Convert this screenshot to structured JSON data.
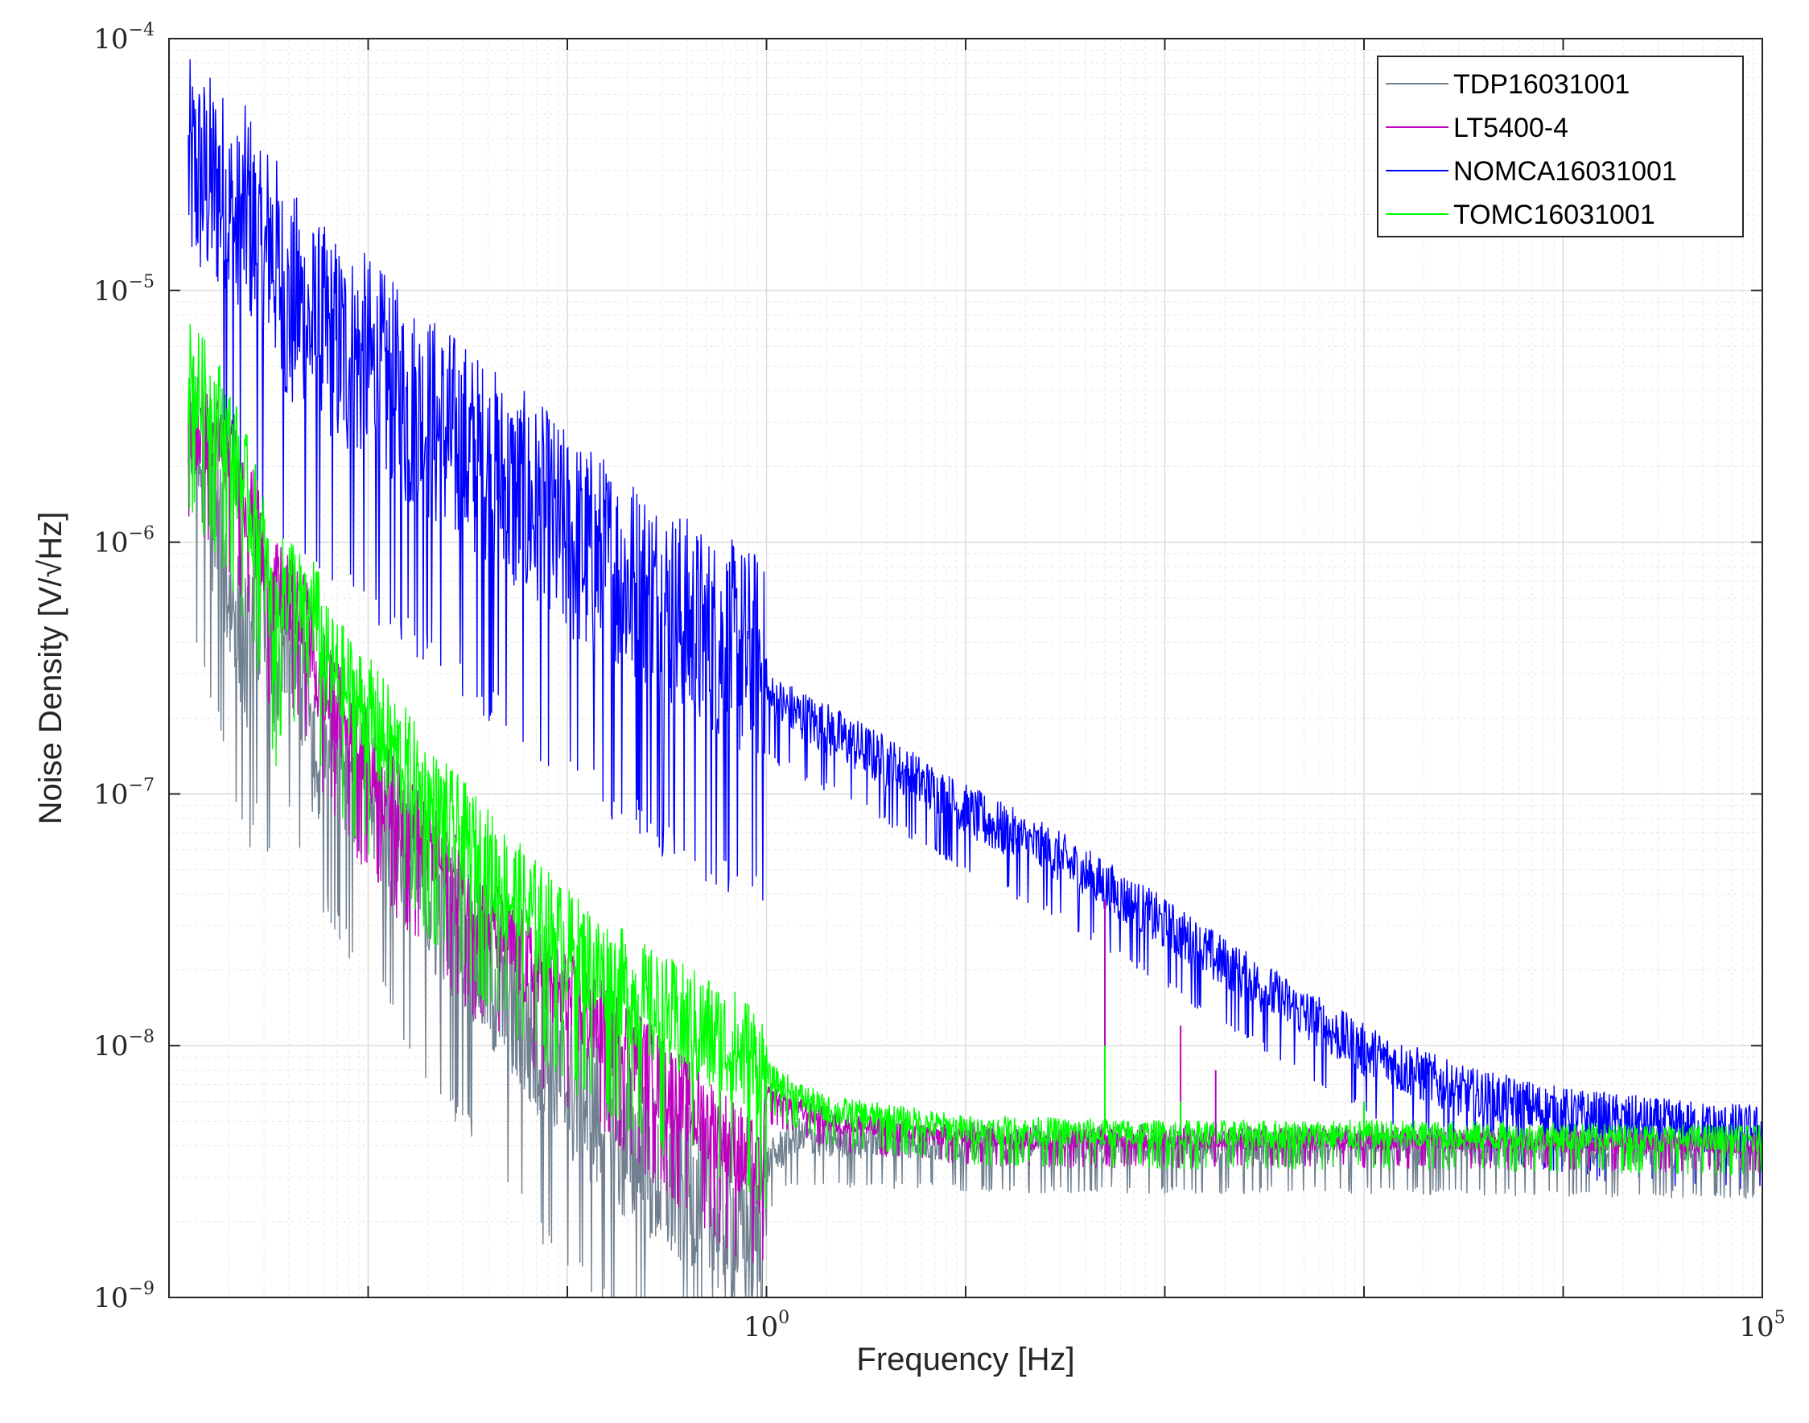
{
  "chart_data": {
    "type": "line",
    "xlabel": "Frequency [Hz]",
    "ylabel": "Noise Density [V/√Hz]",
    "xscale": "log",
    "yscale": "log",
    "xlim": [
      0.001,
      100000
    ],
    "ylim": [
      1e-09,
      0.0001
    ],
    "grid": true,
    "minor_grid": true,
    "legend_position": "top-right",
    "x_ticks": [
      {
        "value": 1,
        "base": "10",
        "exp": "0"
      },
      {
        "value": 100000,
        "base": "10",
        "exp": "5"
      }
    ],
    "y_ticks": [
      {
        "value": 1e-09,
        "base": "10",
        "exp": "−9"
      },
      {
        "value": 1e-08,
        "base": "10",
        "exp": "−8"
      },
      {
        "value": 1e-07,
        "base": "10",
        "exp": "−7"
      },
      {
        "value": 1e-06,
        "base": "10",
        "exp": "−6"
      },
      {
        "value": 1e-05,
        "base": "10",
        "exp": "−5"
      },
      {
        "value": 0.0001,
        "base": "10",
        "exp": "−4"
      }
    ],
    "series": [
      {
        "name": "TDP16031001",
        "color": "#708090",
        "x": [
          0.00125,
          0.0016,
          0.0018,
          0.0025,
          0.0029,
          0.0031,
          0.0035,
          0.004,
          0.0048,
          0.0055,
          0.006,
          0.007,
          0.008,
          0.01,
          0.015,
          0.02,
          0.04,
          0.06,
          0.1,
          0.2,
          0.3,
          0.5,
          0.8,
          0.95,
          1.0,
          1.3,
          1.6,
          2,
          5,
          10,
          30,
          100,
          1000,
          10000,
          100000
        ],
        "y": [
          3e-06,
          1.4e-06,
          9e-07,
          3.3e-07,
          5.7e-07,
          3.4e-07,
          3.3e-07,
          4e-07,
          2.7e-07,
          1.1e-07,
          2e-07,
          1.6e-07,
          1.3e-07,
          1e-07,
          6e-08,
          4e-08,
          2e-08,
          1.2e-08,
          7e-09,
          4e-09,
          3e-09,
          2.3e-09,
          1.8e-09,
          1.6e-09,
          3.3e-09,
          4.2e-09,
          4.3e-09,
          4.2e-09,
          4.2e-09,
          4.1e-09,
          4e-09,
          4e-09,
          4e-09,
          3.9e-09,
          3.8e-09
        ],
        "noise": 0.35
      },
      {
        "name": "LT5400-4",
        "color": "#bf00bf",
        "x": [
          0.00125,
          0.0018,
          0.0022,
          0.0028,
          0.0031,
          0.0038,
          0.0045,
          0.005,
          0.0057,
          0.007,
          0.008,
          0.01,
          0.015,
          0.02,
          0.04,
          0.06,
          0.1,
          0.2,
          0.3,
          0.5,
          0.8,
          0.95,
          1.0,
          1.5,
          2,
          5,
          10,
          30,
          100,
          1000,
          10000,
          100000
        ],
        "y": [
          3e-06,
          2.4e-06,
          1.8e-06,
          1.1e-06,
          6.3e-07,
          6.2e-07,
          5e-07,
          4.6e-07,
          2.5e-07,
          2.2e-07,
          1.7e-07,
          1.3e-07,
          8e-08,
          6e-08,
          3e-08,
          2.2e-08,
          1.5e-08,
          1e-08,
          7e-09,
          5e-09,
          3.5e-09,
          3e-09,
          6.3e-09,
          5.5e-09,
          5e-09,
          4.5e-09,
          4.3e-09,
          4.2e-09,
          4.2e-09,
          4.2e-09,
          4.1e-09,
          4e-09
        ],
        "noise": 0.2
      },
      {
        "name": "NOMCA16031001",
        "color": "#0000ff",
        "x": [
          0.00125,
          0.0015,
          0.0018,
          0.0022,
          0.0025,
          0.003,
          0.0032,
          0.0035,
          0.004,
          0.0045,
          0.005,
          0.006,
          0.008,
          0.01,
          0.015,
          0.02,
          0.03,
          0.05,
          0.08,
          0.1,
          0.2,
          0.3,
          0.5,
          0.95,
          1.0,
          2,
          5,
          10,
          30,
          100,
          300,
          1000,
          3000,
          10000,
          30000,
          100000
        ],
        "y": [
          3e-05,
          2.7e-05,
          2.5e-05,
          1.6e-05,
          2.1e-05,
          1.1e-05,
          1.7e-05,
          1.2e-05,
          8e-06,
          9e-06,
          7e-06,
          6.5e-06,
          5.5e-06,
          5e-06,
          3.5e-06,
          3e-06,
          2.3e-06,
          1.6e-06,
          1.2e-06,
          1e-06,
          7e-07,
          5.5e-07,
          4e-07,
          3.3e-07,
          2.4e-07,
          1.8e-07,
          1.2e-07,
          8.5e-08,
          5.5e-08,
          3e-08,
          1.7e-08,
          9.5e-09,
          6.5e-09,
          5.3e-09,
          4.8e-09,
          4.5e-09
        ],
        "noise": 0.45
      },
      {
        "name": "TOMC16031001",
        "color": "#00ff00",
        "x": [
          0.00125,
          0.0018,
          0.0022,
          0.0027,
          0.003,
          0.0034,
          0.0038,
          0.004,
          0.0045,
          0.005,
          0.0052,
          0.006,
          0.008,
          0.01,
          0.015,
          0.02,
          0.04,
          0.06,
          0.1,
          0.2,
          0.3,
          0.5,
          0.8,
          0.95,
          1.0,
          1.5,
          2,
          5,
          10,
          30,
          100,
          1000,
          10000,
          100000
        ],
        "y": [
          4.5e-06,
          3e-06,
          2e-06,
          1.2e-06,
          9e-07,
          4e-07,
          6.5e-07,
          7e-07,
          5.5e-07,
          4e-07,
          6.3e-07,
          3.3e-07,
          2.5e-07,
          2e-07,
          1.3e-07,
          9e-08,
          5e-08,
          3.5e-08,
          2.4e-08,
          1.6e-08,
          1.3e-08,
          1.1e-08,
          9e-09,
          8e-09,
          7.5e-09,
          6.2e-09,
          5.5e-09,
          5e-09,
          4.6e-09,
          4.5e-09,
          4.4e-09,
          4.4e-09,
          4.3e-09,
          4.2e-09
        ],
        "noise": 0.25
      }
    ],
    "spikes": [
      {
        "series": "LT5400-4",
        "x": 50,
        "y": 3.8e-08
      },
      {
        "series": "LT5400-4",
        "x": 120,
        "y": 1.2e-08
      },
      {
        "series": "LT5400-4",
        "x": 180,
        "y": 8e-09
      },
      {
        "series": "TOMC16031001",
        "x": 50,
        "y": 1e-08
      },
      {
        "series": "TOMC16031001",
        "x": 120,
        "y": 6e-09
      },
      {
        "series": "TOMC16031001",
        "x": 1000,
        "y": 6e-09
      }
    ]
  }
}
